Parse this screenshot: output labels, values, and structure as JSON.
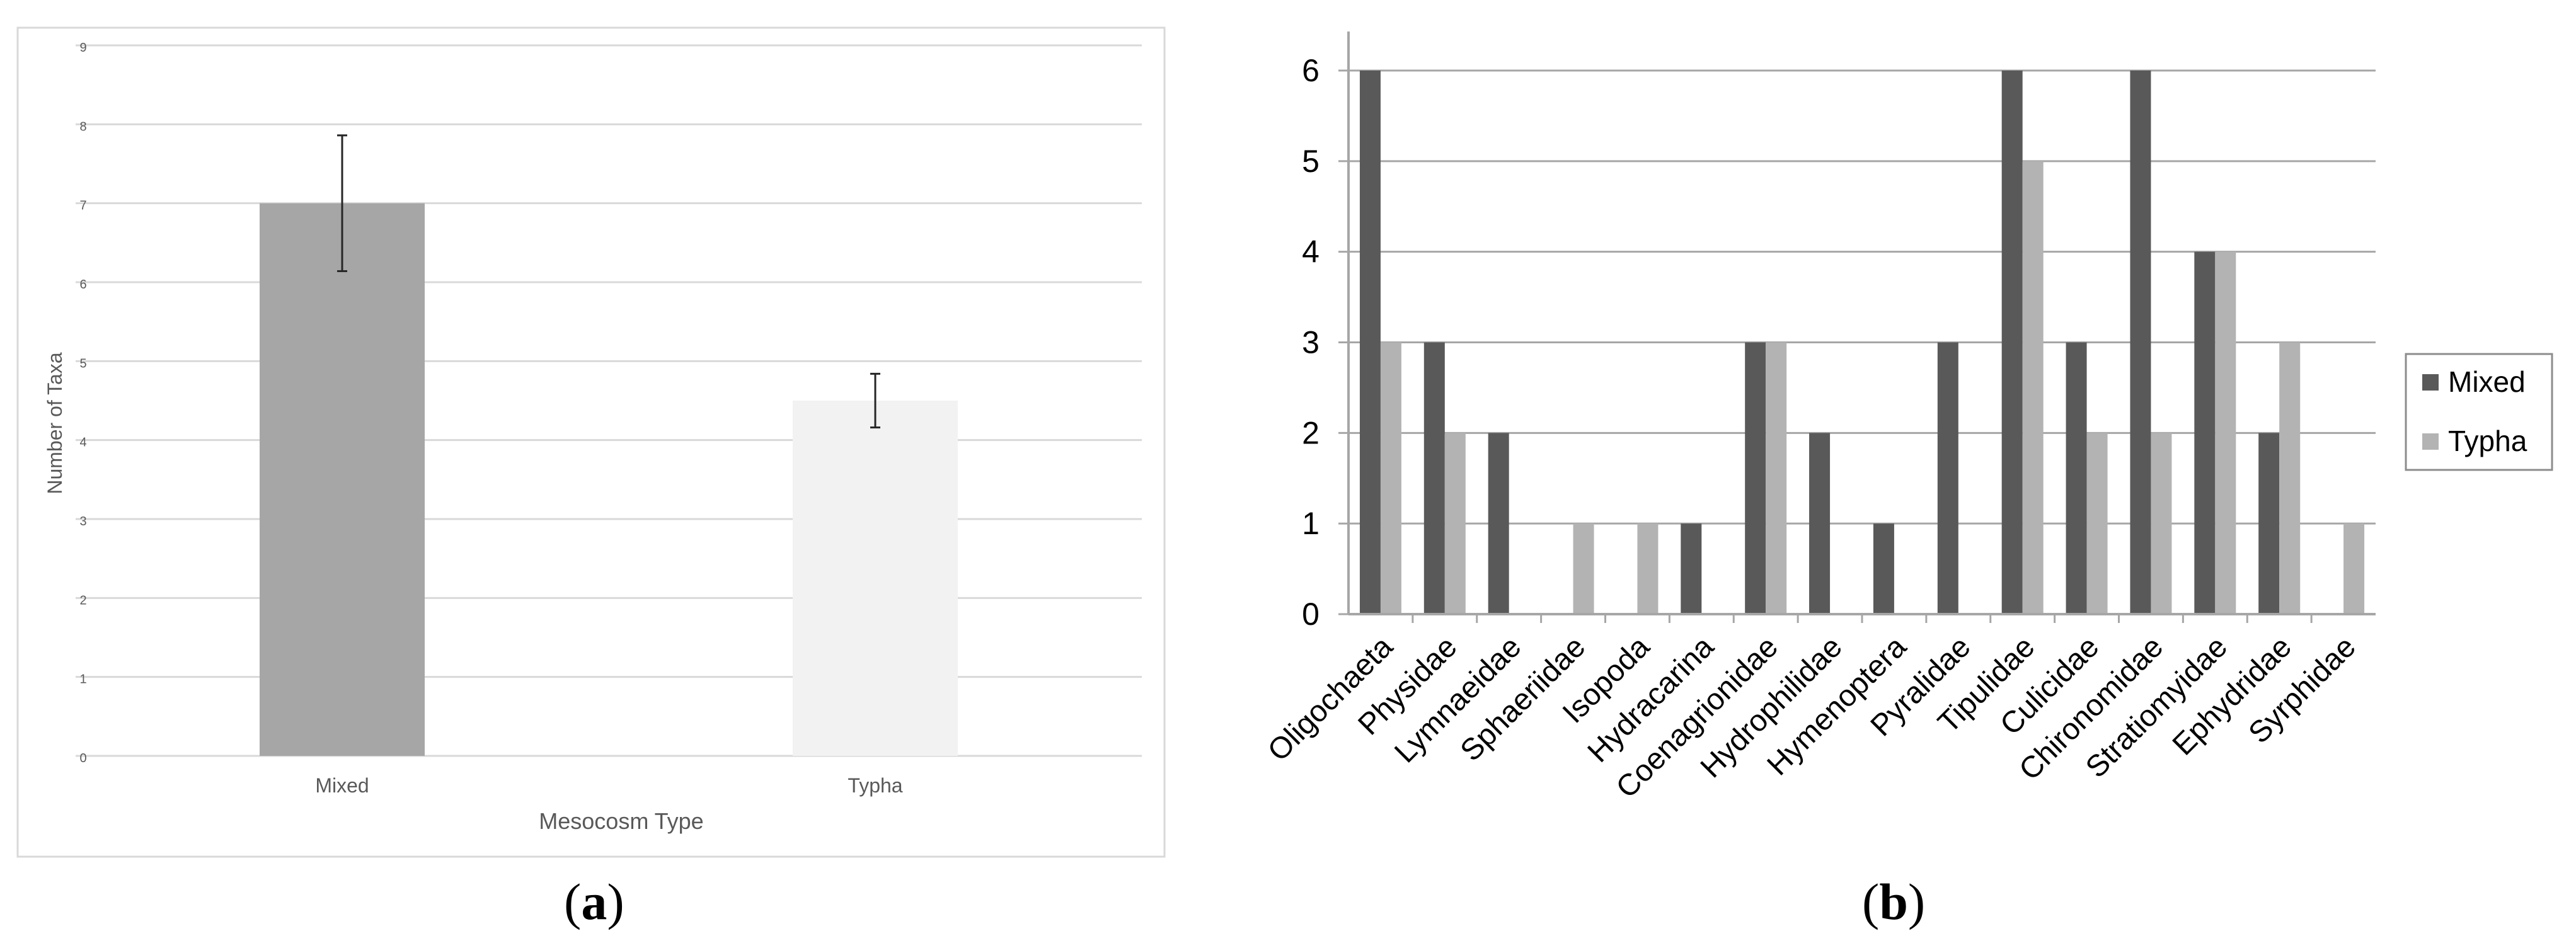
{
  "chart_data": [
    {
      "type": "bar",
      "panel": "a",
      "categories": [
        "Mixed",
        "Typha"
      ],
      "values": [
        7,
        4.5
      ],
      "error": [
        0.86,
        0.34
      ],
      "xlabel": "Mesocosm Type",
      "ylabel": "Number of Taxa",
      "ylim": [
        0,
        9
      ],
      "yticks": [
        "0",
        "1",
        "2",
        "3",
        "4",
        "5",
        "6",
        "7",
        "8",
        "9"
      ],
      "grid": true,
      "legend": "none",
      "colors": {
        "Mixed": "#a6a6a6",
        "Typha": "#f2f2f2"
      }
    },
    {
      "type": "bar",
      "panel": "b",
      "categories": [
        "Oligochaeta",
        "Physidae",
        "Lymnaeidae",
        "Sphaeriidae",
        "Isopoda",
        "Hydracarina",
        "Coenagrionidae",
        "Hydrophilidae",
        "Hymenoptera",
        "Pyralidae",
        "Tipulidae",
        "Culicidae",
        "Chironomidae",
        "Stratiomyidae",
        "Ephydridae",
        "Syrphidae"
      ],
      "series": [
        {
          "name": "Mixed",
          "values": [
            6,
            3,
            2,
            0,
            0,
            1,
            3,
            2,
            1,
            3,
            6,
            3,
            6,
            4,
            2,
            0
          ],
          "color": "#595959"
        },
        {
          "name": "Typha",
          "values": [
            3,
            2,
            0,
            1,
            1,
            0,
            3,
            0,
            0,
            0,
            5,
            2,
            2,
            4,
            3,
            1
          ],
          "color": "#b3b3b3"
        }
      ],
      "ylim": [
        0,
        6
      ],
      "yticks": [
        "0",
        "1",
        "2",
        "3",
        "4",
        "5",
        "6"
      ],
      "grid": true,
      "legend": "right"
    }
  ],
  "captions": {
    "a": "a",
    "b": "b"
  }
}
